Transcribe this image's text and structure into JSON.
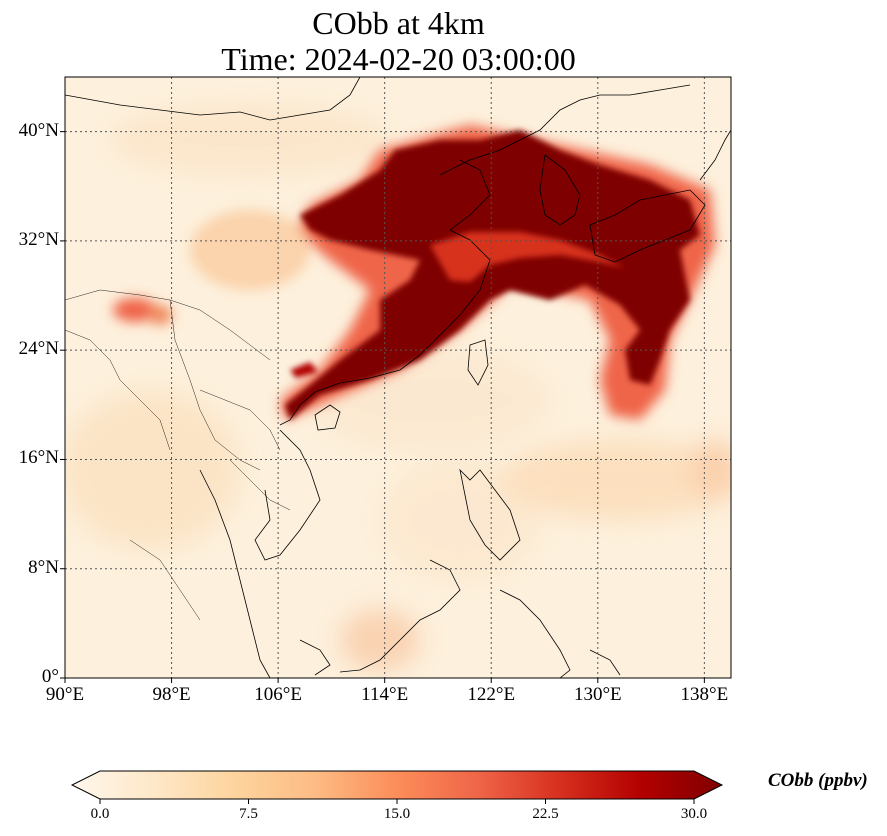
{
  "title_line1": "CObb at 4km",
  "title_line2": "Time: 2024-02-20 03:00:00",
  "map": {
    "projection": "PlateCarree",
    "lon_range": [
      90,
      140
    ],
    "lat_range": [
      0,
      44
    ],
    "gridlines": "dotted",
    "lat_ticks": [
      {
        "value": 40,
        "label": "40°N"
      },
      {
        "value": 32,
        "label": "32°N"
      },
      {
        "value": 24,
        "label": "24°N"
      },
      {
        "value": 16,
        "label": "16°N"
      },
      {
        "value": 8,
        "label": "8°N"
      },
      {
        "value": 0,
        "label": "0°"
      }
    ],
    "lon_ticks": [
      {
        "value": 90,
        "label": "90°E"
      },
      {
        "value": 98,
        "label": "98°E"
      },
      {
        "value": 106,
        "label": "106°E"
      },
      {
        "value": 114,
        "label": "114°E"
      },
      {
        "value": 122,
        "label": "122°E"
      },
      {
        "value": 130,
        "label": "130°E"
      },
      {
        "value": 138,
        "label": "138°E"
      }
    ]
  },
  "colorbar": {
    "label": "CObb (ppbv)",
    "colormap": "OrRd",
    "colors": [
      "#fff7ec",
      "#fee8c8",
      "#fdd49e",
      "#fdbb84",
      "#fc8d59",
      "#ef6548",
      "#d7301f",
      "#b30000",
      "#7f0000"
    ],
    "range": [
      0.0,
      30.0
    ],
    "extend": "both",
    "ticks": [
      {
        "value": 0.0,
        "label": "0.0"
      },
      {
        "value": 7.5,
        "label": "7.5"
      },
      {
        "value": 15.0,
        "label": "15.0"
      },
      {
        "value": 22.5,
        "label": "22.5"
      },
      {
        "value": 30.0,
        "label": "30.0"
      }
    ]
  }
}
